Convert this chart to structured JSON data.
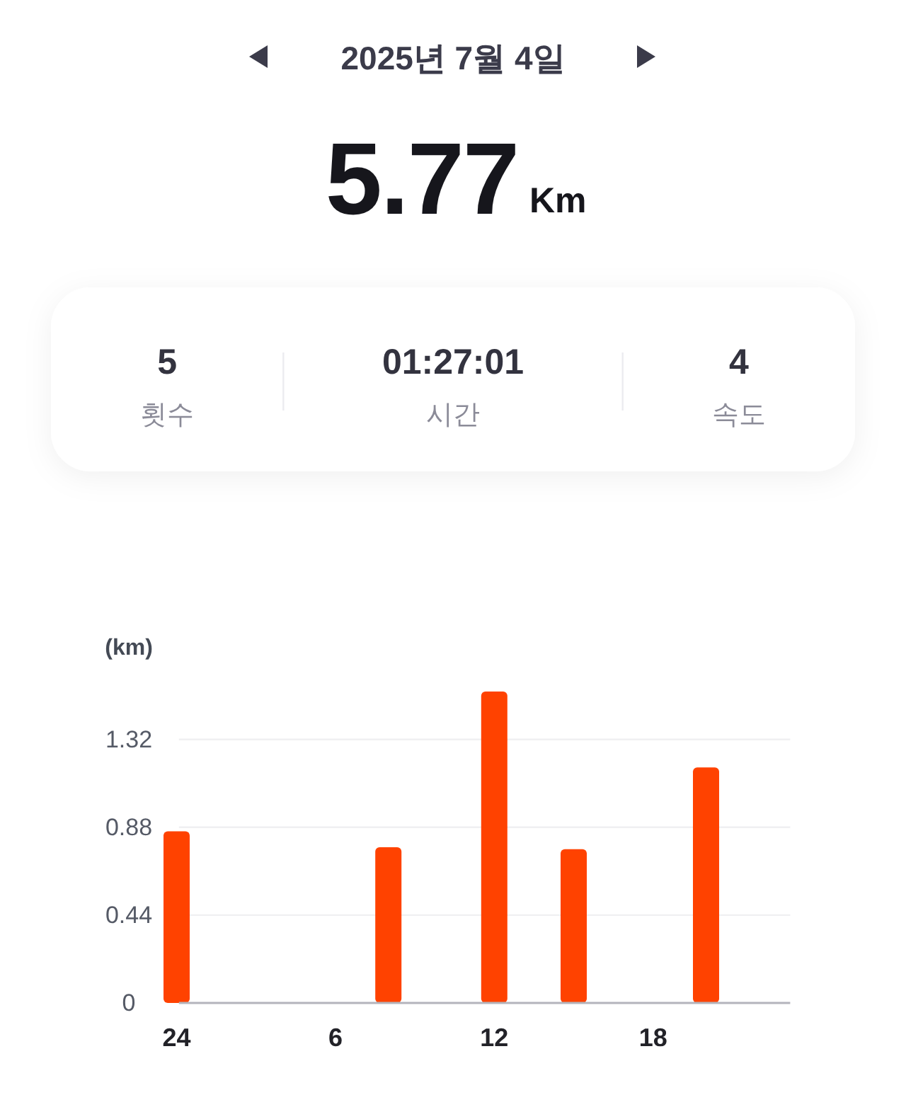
{
  "chart_data": [
    {
      "type": "other",
      "title": "2025년 7월 4일",
      "annotations": [
        "5.77",
        "Km",
        "5",
        "횟수",
        "01:27:01",
        "시간",
        "4",
        "속도"
      ]
    },
    {
      "type": "bar",
      "ylabel": "(km)",
      "categories": [
        "24",
        null,
        null,
        null,
        null,
        null,
        "6",
        null,
        null,
        null,
        null,
        null,
        "12",
        null,
        null,
        null,
        null,
        null,
        "18",
        null,
        null,
        null,
        null,
        null
      ],
      "values": [
        0.86,
        null,
        null,
        null,
        null,
        null,
        null,
        null,
        0.78,
        null,
        null,
        null,
        1.56,
        null,
        null,
        0.77,
        null,
        null,
        null,
        null,
        1.18,
        null,
        null,
        null
      ],
      "color": "#ff4200",
      "ylim": [
        0,
        1.56
      ],
      "yticks": [
        0,
        0.44,
        0.88,
        1.32
      ],
      "grid": "y"
    }
  ]
}
